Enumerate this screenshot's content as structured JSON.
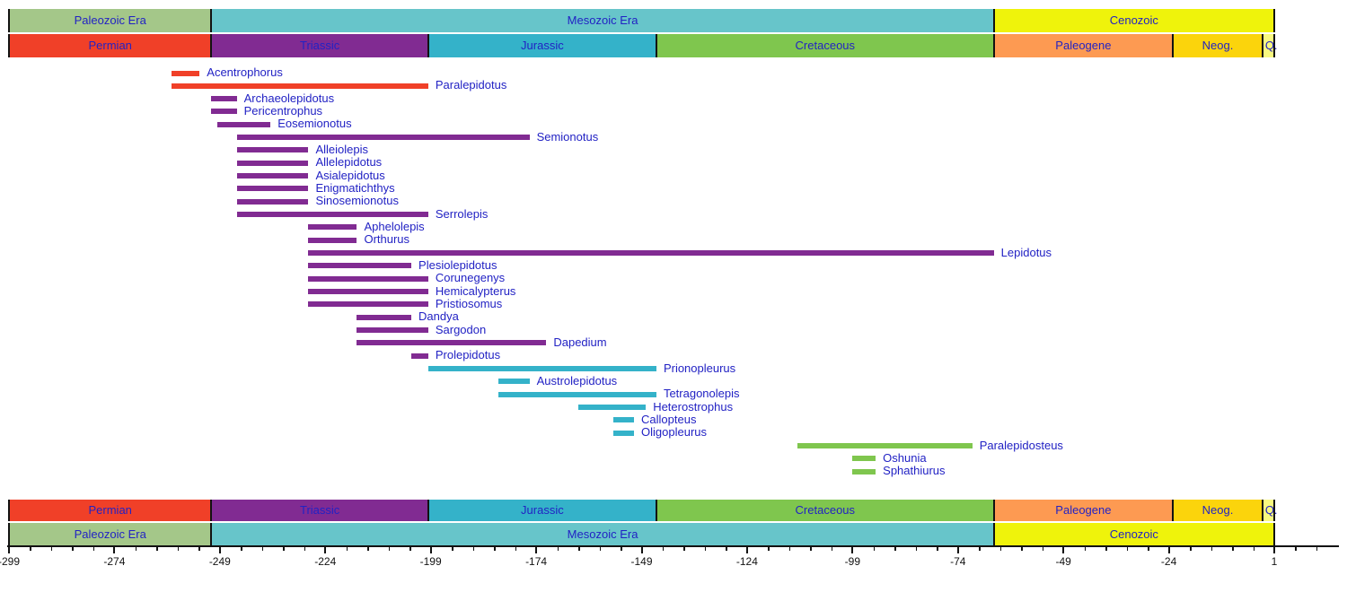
{
  "chart_data": {
    "type": "bar",
    "subtype": "geologic-range-timeline",
    "background": "#FFFFFF",
    "label_color": "#2222C4",
    "axis_color": "#121212",
    "axis": {
      "min": -299,
      "max": 1,
      "major_tick_step": 25,
      "minor_tick_step": 5,
      "tick_labels": [
        "-299",
        "-274",
        "-249",
        "-224",
        "-199",
        "-174",
        "-149",
        "-124",
        "-99",
        "-74",
        "-49",
        "-24",
        "1"
      ]
    },
    "colors": {
      "permian": "#F04028",
      "triassic": "#812B92",
      "jurassic": "#34B2C9",
      "cretaceous": "#7FC64E",
      "paleogene": "#FD9A52",
      "neogene": "#FBD40C",
      "quaternary": "#F9F97F",
      "paleozoic_era": "#A4C789",
      "mesozoic_era": "#67C5CA",
      "cenozoic_era": "#EFF30B"
    },
    "eras": [
      {
        "name": "Paleozoic Era",
        "from": -299,
        "to": -251,
        "color": "paleozoic_era"
      },
      {
        "name": "Mesozoic Era",
        "from": -251,
        "to": -65.5,
        "color": "mesozoic_era"
      },
      {
        "name": "Cenozoic",
        "from": -65.5,
        "to": 1,
        "color": "cenozoic_era"
      }
    ],
    "periods": [
      {
        "name": "Permian",
        "from": -299,
        "to": -251,
        "color": "permian"
      },
      {
        "name": "Triassic",
        "from": -251,
        "to": -199.6,
        "color": "triassic"
      },
      {
        "name": "Jurassic",
        "from": -199.6,
        "to": -145.5,
        "color": "jurassic"
      },
      {
        "name": "Cretaceous",
        "from": -145.5,
        "to": -65.5,
        "color": "cretaceous"
      },
      {
        "name": "Paleogene",
        "from": -65.5,
        "to": -23.03,
        "color": "paleogene"
      },
      {
        "name": "Neog.",
        "from": -23.03,
        "to": -1.806,
        "color": "neogene"
      },
      {
        "name": "Q.",
        "from": -1.806,
        "to": 1,
        "color": "quaternary",
        "label_align": "left"
      }
    ],
    "taxa": [
      {
        "name": "Acentrophorus",
        "from": -260.4,
        "to": -253.8,
        "period": "permian"
      },
      {
        "name": "Paralepidotus",
        "from": -260.4,
        "to": -199.6,
        "period": "permian"
      },
      {
        "name": "Archaeolepidotus",
        "from": -251,
        "to": -245,
        "period": "triassic"
      },
      {
        "name": "Pericentrophus",
        "from": -251,
        "to": -245,
        "period": "triassic"
      },
      {
        "name": "Eosemionotus",
        "from": -249.7,
        "to": -237,
        "period": "triassic"
      },
      {
        "name": "Semionotus",
        "from": -245,
        "to": -175.6,
        "period": "triassic"
      },
      {
        "name": "Alleiolepis",
        "from": -245,
        "to": -228,
        "period": "triassic"
      },
      {
        "name": "Allelepidotus",
        "from": -245,
        "to": -228,
        "period": "triassic"
      },
      {
        "name": "Asialepidotus",
        "from": -245,
        "to": -228,
        "period": "triassic"
      },
      {
        "name": "Enigmatichthys",
        "from": -245,
        "to": -228,
        "period": "triassic"
      },
      {
        "name": "Sinosemionotus",
        "from": -245,
        "to": -228,
        "period": "triassic"
      },
      {
        "name": "Serrolepis",
        "from": -245,
        "to": -199.6,
        "period": "triassic"
      },
      {
        "name": "Aphelolepis",
        "from": -228,
        "to": -216.5,
        "period": "triassic"
      },
      {
        "name": "Orthurus",
        "from": -228,
        "to": -216.5,
        "period": "triassic"
      },
      {
        "name": "Lepidotus",
        "from": -228,
        "to": -65.5,
        "period": "triassic"
      },
      {
        "name": "Plesiolepidotus",
        "from": -228,
        "to": -203.6,
        "period": "triassic"
      },
      {
        "name": "Corunegenys",
        "from": -228,
        "to": -199.6,
        "period": "triassic"
      },
      {
        "name": "Hemicalypterus",
        "from": -228,
        "to": -199.6,
        "period": "triassic"
      },
      {
        "name": "Pristiosomus",
        "from": -228,
        "to": -199.6,
        "period": "triassic"
      },
      {
        "name": "Dandya",
        "from": -216.5,
        "to": -203.6,
        "period": "triassic"
      },
      {
        "name": "Sargodon",
        "from": -216.5,
        "to": -199.6,
        "period": "triassic"
      },
      {
        "name": "Dapedium",
        "from": -216.5,
        "to": -171.6,
        "period": "triassic"
      },
      {
        "name": "Prolepidotus",
        "from": -203.6,
        "to": -199.6,
        "period": "triassic"
      },
      {
        "name": "Prionopleurus",
        "from": -199.6,
        "to": -145.5,
        "period": "jurassic"
      },
      {
        "name": "Austrolepidotus",
        "from": -183,
        "to": -175.6,
        "period": "jurassic"
      },
      {
        "name": "Tetragonolepis",
        "from": -183,
        "to": -145.5,
        "period": "jurassic"
      },
      {
        "name": "Heterostrophus",
        "from": -164,
        "to": -148,
        "period": "jurassic"
      },
      {
        "name": "Callopteus",
        "from": -155.7,
        "to": -150.8,
        "period": "jurassic"
      },
      {
        "name": "Oligopleurus",
        "from": -155.7,
        "to": -150.8,
        "period": "jurassic"
      },
      {
        "name": "Paralepidosteus",
        "from": -112,
        "to": -70.6,
        "period": "cretaceous"
      },
      {
        "name": "Oshunia",
        "from": -99,
        "to": -93.5,
        "period": "cretaceous"
      },
      {
        "name": "Sphathiurus",
        "from": -99,
        "to": -93.5,
        "period": "cretaceous"
      }
    ]
  }
}
